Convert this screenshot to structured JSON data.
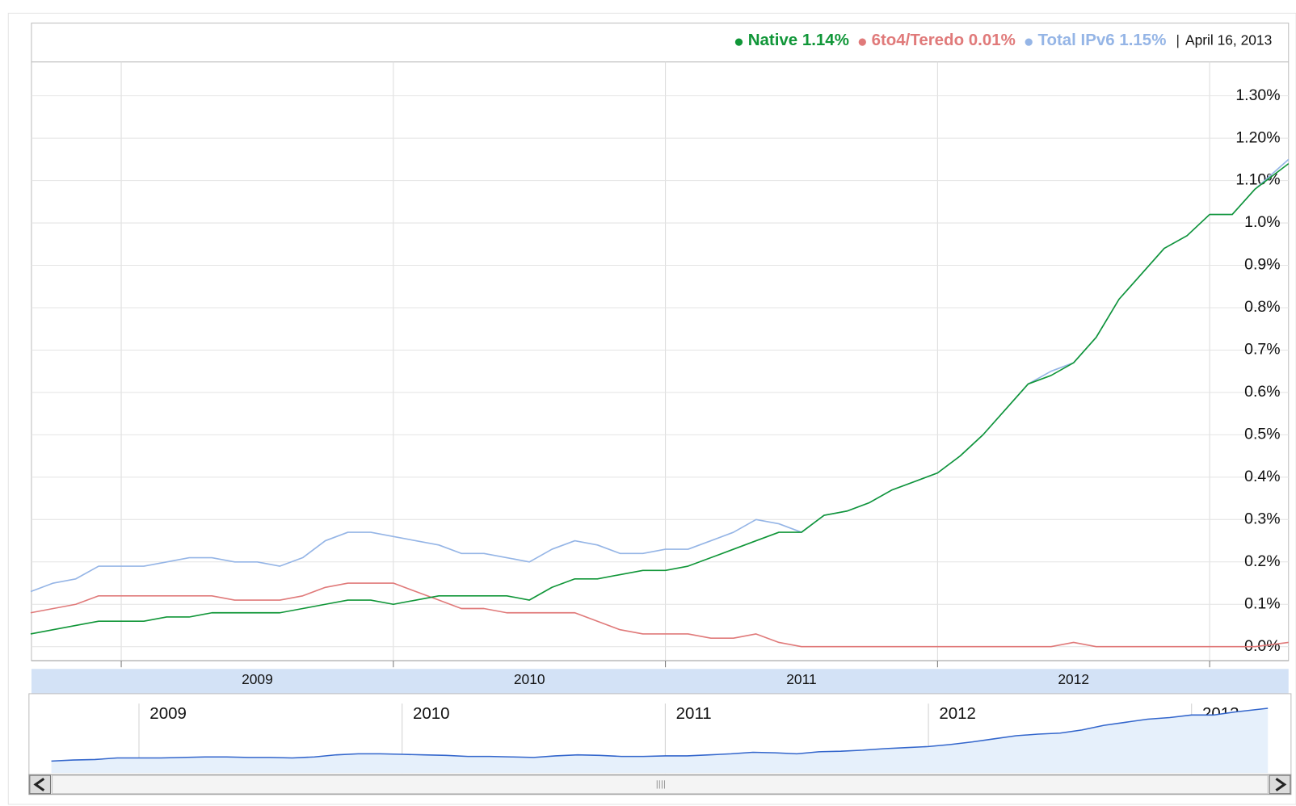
{
  "chart_data": {
    "type": "line",
    "date_label": "April 16, 2013",
    "x": [
      2008.667,
      2008.75,
      2008.833,
      2008.917,
      2009,
      2009.083,
      2009.167,
      2009.25,
      2009.333,
      2009.417,
      2009.5,
      2009.583,
      2009.667,
      2009.75,
      2009.833,
      2009.917,
      2010,
      2010.083,
      2010.167,
      2010.25,
      2010.333,
      2010.417,
      2010.5,
      2010.583,
      2010.667,
      2010.75,
      2010.833,
      2010.917,
      2011,
      2011.083,
      2011.167,
      2011.25,
      2011.333,
      2011.417,
      2011.5,
      2011.583,
      2011.667,
      2011.75,
      2011.833,
      2011.917,
      2012,
      2012.083,
      2012.167,
      2012.25,
      2012.333,
      2012.417,
      2012.5,
      2012.583,
      2012.667,
      2012.75,
      2012.833,
      2012.917,
      2013,
      2013.083,
      2013.167,
      2013.29
    ],
    "xlim": [
      2008.67,
      2013.29
    ],
    "xticks": [
      {
        "value": 2009.5,
        "label": "2009"
      },
      {
        "value": 2010.5,
        "label": "2010"
      },
      {
        "value": 2011.5,
        "label": "2011"
      },
      {
        "value": 2012.5,
        "label": "2012"
      }
    ],
    "xgrid": [
      2009,
      2010,
      2011,
      2012,
      2013
    ],
    "ylim": [
      -0.033,
      1.38
    ],
    "yticks": [
      {
        "value": 0,
        "label": "0.0%"
      },
      {
        "value": 0.1,
        "label": "0.1%"
      },
      {
        "value": 0.2,
        "label": "0.2%"
      },
      {
        "value": 0.3,
        "label": "0.3%"
      },
      {
        "value": 0.4,
        "label": "0.4%"
      },
      {
        "value": 0.5,
        "label": "0.5%"
      },
      {
        "value": 0.6,
        "label": "0.6%"
      },
      {
        "value": 0.7,
        "label": "0.7%"
      },
      {
        "value": 0.8,
        "label": "0.8%"
      },
      {
        "value": 0.9,
        "label": "0.9%"
      },
      {
        "value": 1.0,
        "label": "1.0%"
      },
      {
        "value": 1.1,
        "label": "1.10%"
      },
      {
        "value": 1.2,
        "label": "1.20%"
      },
      {
        "value": 1.3,
        "label": "1.30%"
      }
    ],
    "grid": true,
    "series": [
      {
        "name": "Native",
        "legend_label": "1.14%",
        "color": "#109638",
        "values": [
          0.03,
          0.04,
          0.05,
          0.06,
          0.06,
          0.06,
          0.07,
          0.07,
          0.08,
          0.08,
          0.08,
          0.08,
          0.09,
          0.1,
          0.11,
          0.11,
          0.1,
          0.11,
          0.12,
          0.12,
          0.12,
          0.12,
          0.11,
          0.14,
          0.16,
          0.16,
          0.17,
          0.18,
          0.18,
          0.19,
          0.21,
          0.23,
          0.25,
          0.27,
          0.27,
          0.31,
          0.32,
          0.34,
          0.37,
          0.39,
          0.41,
          0.45,
          0.5,
          0.56,
          0.62,
          0.64,
          0.67,
          0.73,
          0.82,
          0.88,
          0.94,
          0.97,
          1.02,
          1.02,
          1.08,
          1.14
        ]
      },
      {
        "name": "6to4/Teredo",
        "legend_label": "0.01%",
        "color": "#e07a7a",
        "values": [
          0.08,
          0.09,
          0.1,
          0.12,
          0.12,
          0.12,
          0.12,
          0.12,
          0.12,
          0.11,
          0.11,
          0.11,
          0.12,
          0.14,
          0.15,
          0.15,
          0.15,
          0.13,
          0.11,
          0.09,
          0.09,
          0.08,
          0.08,
          0.08,
          0.08,
          0.06,
          0.04,
          0.03,
          0.03,
          0.03,
          0.02,
          0.02,
          0.03,
          0.01,
          0.0,
          0.0,
          0.0,
          0.0,
          0.0,
          0.0,
          0.0,
          0.0,
          0.0,
          0.0,
          0.0,
          0.0,
          0.01,
          0.0,
          0.0,
          0.0,
          0.0,
          0.0,
          0.0,
          0.0,
          0.0,
          0.01
        ]
      },
      {
        "name": "Total IPv6",
        "legend_label": "1.15%",
        "color": "#95b5e6",
        "values": [
          0.13,
          0.15,
          0.16,
          0.19,
          0.19,
          0.19,
          0.2,
          0.21,
          0.21,
          0.2,
          0.2,
          0.19,
          0.21,
          0.25,
          0.27,
          0.27,
          0.26,
          0.25,
          0.24,
          0.22,
          0.22,
          0.21,
          0.2,
          0.23,
          0.25,
          0.24,
          0.22,
          0.22,
          0.23,
          0.23,
          0.25,
          0.27,
          0.3,
          0.29,
          0.27,
          0.31,
          0.32,
          0.34,
          0.37,
          0.39,
          0.41,
          0.45,
          0.5,
          0.56,
          0.62,
          0.65,
          0.67,
          0.73,
          0.82,
          0.88,
          0.94,
          0.97,
          1.02,
          1.02,
          1.08,
          1.15
        ]
      }
    ],
    "navigator": {
      "series_index": 2,
      "color": "#3366cc",
      "ylim": [
        -0.1,
        1.4
      ],
      "xticks": [
        2009,
        2010,
        2011,
        2012,
        2013
      ]
    }
  }
}
